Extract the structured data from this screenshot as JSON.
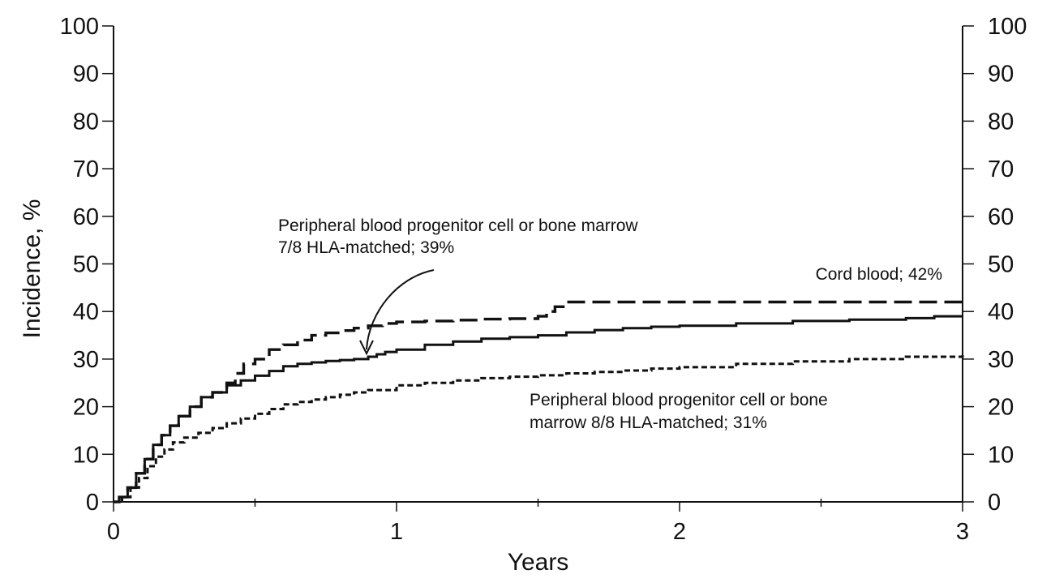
{
  "chart_data": {
    "type": "line",
    "xlabel": "Years",
    "ylabel": "Incidence, %",
    "xlim": [
      0,
      3
    ],
    "ylim": [
      0,
      100
    ],
    "x_ticks": [
      "0",
      "1",
      "2",
      "3"
    ],
    "x_minor_ticks": [
      0.5,
      1.5,
      2.5
    ],
    "y_ticks": [
      "0",
      "10",
      "20",
      "30",
      "40",
      "50",
      "60",
      "70",
      "80",
      "90",
      "100"
    ],
    "y_right_ticks": [
      "0",
      "10",
      "20",
      "30",
      "40",
      "50",
      "60",
      "70",
      "80",
      "90",
      "100"
    ],
    "grid": false,
    "step": true,
    "series": [
      {
        "label": "Cord blood; 42%",
        "style": "dashed",
        "x": [
          0,
          0.02,
          0.05,
          0.08,
          0.11,
          0.14,
          0.17,
          0.2,
          0.23,
          0.27,
          0.31,
          0.35,
          0.4,
          0.43,
          0.46,
          0.5,
          0.55,
          0.6,
          0.65,
          0.7,
          0.75,
          0.8,
          0.85,
          0.9,
          0.95,
          1.0,
          1.1,
          1.2,
          1.3,
          1.4,
          1.5,
          1.53,
          1.56,
          1.6,
          1.7,
          1.8,
          2.0,
          2.5,
          3.0
        ],
        "y": [
          0,
          1,
          3,
          6,
          9,
          12,
          14,
          16,
          18,
          20,
          22,
          23,
          25,
          27,
          29,
          30,
          32,
          33,
          34,
          35,
          35.5,
          36,
          36.5,
          37,
          37.5,
          37.8,
          38,
          38.2,
          38.4,
          38.5,
          39,
          40,
          41,
          42,
          42,
          42,
          42,
          42,
          42
        ]
      },
      {
        "label": "Peripheral blood progenitor cell or bone marrow 7/8 HLA-matched; 39%",
        "style": "solid",
        "x": [
          0,
          0.02,
          0.05,
          0.08,
          0.11,
          0.14,
          0.17,
          0.2,
          0.23,
          0.27,
          0.31,
          0.35,
          0.4,
          0.45,
          0.5,
          0.55,
          0.6,
          0.65,
          0.7,
          0.75,
          0.8,
          0.85,
          0.9,
          0.93,
          0.96,
          1.0,
          1.1,
          1.2,
          1.3,
          1.4,
          1.5,
          1.6,
          1.7,
          1.8,
          1.9,
          2.0,
          2.2,
          2.4,
          2.6,
          2.8,
          2.9,
          3.0
        ],
        "y": [
          0,
          1,
          3,
          6,
          9,
          12,
          14,
          16,
          18,
          20,
          22,
          23,
          24.5,
          25.5,
          26.5,
          27.5,
          28.5,
          29,
          29.3,
          29.6,
          29.8,
          30,
          30.5,
          31,
          31.5,
          32,
          33,
          33.7,
          34.3,
          34.6,
          35,
          35.6,
          36.1,
          36.5,
          36.8,
          37,
          37.5,
          38,
          38.3,
          38.6,
          39,
          39
        ]
      },
      {
        "label": "Peripheral blood progenitor cell or bone marrow 8/8 HLA-matched; 31%",
        "style": "dotted",
        "x": [
          0,
          0.03,
          0.06,
          0.09,
          0.12,
          0.15,
          0.18,
          0.21,
          0.25,
          0.3,
          0.35,
          0.4,
          0.45,
          0.5,
          0.55,
          0.6,
          0.65,
          0.7,
          0.75,
          0.8,
          0.85,
          0.9,
          1.0,
          1.1,
          1.2,
          1.3,
          1.4,
          1.5,
          1.6,
          1.7,
          1.8,
          1.9,
          2.0,
          2.2,
          2.4,
          2.6,
          2.8,
          3.0
        ],
        "y": [
          0,
          1,
          3,
          5,
          7.5,
          9.5,
          11,
          12.5,
          13.5,
          14.5,
          15.5,
          16.5,
          17.5,
          18.5,
          19.5,
          20.5,
          21,
          21.5,
          22,
          22.5,
          23,
          23.5,
          24.5,
          25,
          25.5,
          26,
          26.3,
          26.6,
          27,
          27.3,
          27.6,
          28,
          28.3,
          29,
          29.5,
          30,
          30.5,
          31
        ]
      }
    ],
    "annotations": [
      {
        "lines": [
          "Peripheral blood progenitor cell or bone marrow",
          "7/8 HLA-matched; 39%"
        ],
        "arrow_to_series": 1
      },
      {
        "lines": [
          "Cord blood; 42%"
        ]
      },
      {
        "lines": [
          "Peripheral blood progenitor cell or bone",
          "marrow 8/8 HLA-matched; 31%"
        ]
      }
    ]
  }
}
